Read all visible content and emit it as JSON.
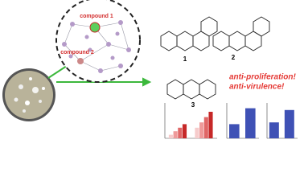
{
  "network": {
    "labels": [
      "compound 1",
      "compound 2"
    ]
  },
  "structures": {
    "labels": [
      "1",
      "2",
      "3"
    ]
  },
  "claims": [
    "anti-proliferation!",
    "anti-virulence!"
  ],
  "charts": [
    {
      "type": "bar",
      "ylim": [
        0,
        100
      ],
      "series": [
        {
          "color": "#f6cccc",
          "values": [
            10,
            30
          ]
        },
        {
          "color": "#ef9a9a",
          "values": [
            20,
            45
          ]
        },
        {
          "color": "#e06666",
          "values": [
            30,
            60
          ]
        },
        {
          "color": "#c62828",
          "values": [
            40,
            75
          ]
        }
      ]
    },
    {
      "type": "bar",
      "ylim": [
        0,
        100
      ],
      "color": "#3f51b5",
      "values": [
        40,
        85
      ]
    },
    {
      "type": "bar",
      "ylim": [
        0,
        100
      ],
      "color": "#3f51b5",
      "values": [
        45,
        80
      ]
    }
  ]
}
